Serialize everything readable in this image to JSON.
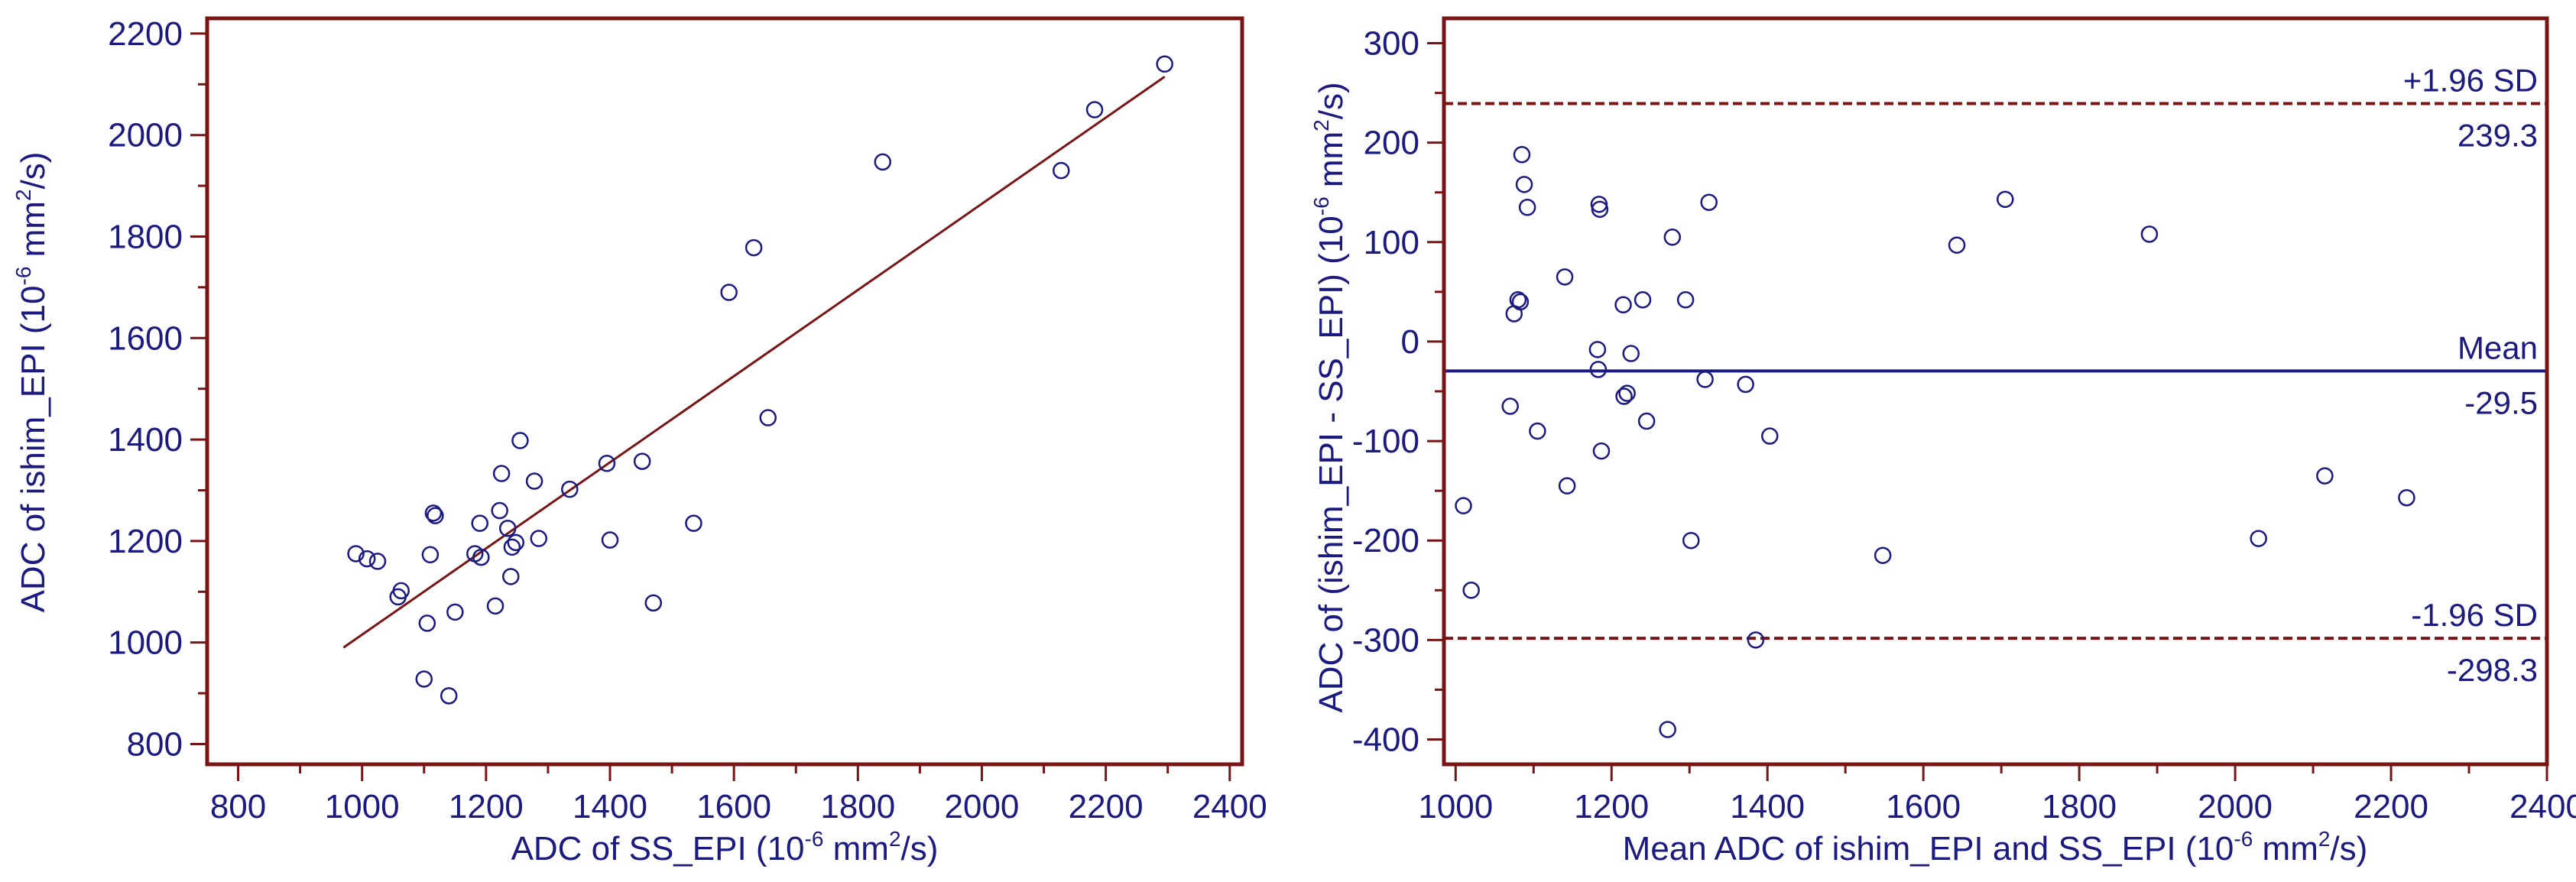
{
  "colors": {
    "frame": "#7a1414",
    "text": "#1a1a80",
    "points": "#1a1a80",
    "regression_line": "#7a1414",
    "mean_line": "#1a1a80",
    "limit_lines": "#7a1414"
  },
  "chart_data": [
    {
      "type": "scatter",
      "x_range": [
        750,
        2420
      ],
      "y_range": [
        760,
        2230
      ],
      "xlabel": {
        "pre": "ADC of SS_EPI (10",
        "sup": "-6",
        "mid": " mm",
        "sup2": "2",
        "post": "/s)"
      },
      "ylabel": {
        "pre": "ADC of ishim_EPI (10",
        "sup": "-6",
        "mid": " mm",
        "sup2": "2",
        "post": "/s)"
      },
      "x_ticks": [
        800,
        1000,
        1200,
        1400,
        1600,
        1800,
        2000,
        2200,
        2400
      ],
      "x_tick_labels": [
        "800",
        "1000",
        "1200",
        "1400",
        "1600",
        "1800",
        "2000",
        "2200",
        "2400"
      ],
      "x_minor_step": 100,
      "y_ticks": [
        800,
        1000,
        1200,
        1400,
        1600,
        1800,
        2000,
        2200
      ],
      "y_tick_labels": [
        "800",
        "1000",
        "1200",
        "1400",
        "1600",
        "1800",
        "2000",
        "2200"
      ],
      "y_minor_step": 100,
      "regression_line": {
        "x": [
          970,
          2295
        ],
        "y": [
          990,
          2115
        ]
      },
      "points": [
        [
          990,
          1175
        ],
        [
          1008,
          1165
        ],
        [
          1025,
          1160
        ],
        [
          1058,
          1090
        ],
        [
          1063,
          1102
        ],
        [
          1100,
          928
        ],
        [
          1105,
          1038
        ],
        [
          1110,
          1173
        ],
        [
          1115,
          1255
        ],
        [
          1118,
          1250
        ],
        [
          1140,
          895
        ],
        [
          1150,
          1060
        ],
        [
          1182,
          1175
        ],
        [
          1190,
          1235
        ],
        [
          1192,
          1168
        ],
        [
          1215,
          1072
        ],
        [
          1222,
          1260
        ],
        [
          1225,
          1333
        ],
        [
          1235,
          1225
        ],
        [
          1240,
          1130
        ],
        [
          1242,
          1188
        ],
        [
          1248,
          1197
        ],
        [
          1255,
          1398
        ],
        [
          1278,
          1318
        ],
        [
          1285,
          1205
        ],
        [
          1335,
          1302
        ],
        [
          1395,
          1353
        ],
        [
          1400,
          1202
        ],
        [
          1452,
          1357
        ],
        [
          1470,
          1078
        ],
        [
          1535,
          1235
        ],
        [
          1592,
          1690
        ],
        [
          1632,
          1778
        ],
        [
          1655,
          1443
        ],
        [
          1840,
          1947
        ],
        [
          2128,
          1930
        ],
        [
          2182,
          2050
        ],
        [
          2295,
          2140
        ]
      ]
    },
    {
      "type": "scatter",
      "x_range": [
        985,
        2400
      ],
      "y_range": [
        -425,
        325
      ],
      "xlabel": {
        "pre": "Mean ADC of ishim_EPI and SS_EPI (10",
        "sup": "-6",
        "mid": " mm",
        "sup2": "2",
        "post": "/s)"
      },
      "ylabel": {
        "pre": "ADC of (ishim_EPI - SS_EPI) (10",
        "sup": "-6",
        "mid": " mm",
        "sup2": "2",
        "post": "/s)"
      },
      "x_ticks": [
        1000,
        1200,
        1400,
        1600,
        1800,
        2000,
        2200,
        2400
      ],
      "x_tick_labels": [
        "1000",
        "1200",
        "1400",
        "1600",
        "1800",
        "2000",
        "2200",
        "2400"
      ],
      "x_minor_step": 100,
      "y_ticks": [
        -400,
        -300,
        -200,
        -100,
        0,
        100,
        200,
        300
      ],
      "y_tick_labels": [
        "-400",
        "-300",
        "-200",
        "-100",
        "0",
        "100",
        "200",
        "300"
      ],
      "y_minor_step": 50,
      "reference_lines": [
        {
          "value": 239.3,
          "style": "dashed",
          "label": "+1.96 SD",
          "value_label": "239.3"
        },
        {
          "value": -29.5,
          "style": "solid",
          "label": "Mean",
          "value_label": "-29.5"
        },
        {
          "value": -298.3,
          "style": "dashed",
          "label": "-1.96 SD",
          "value_label": "-298.3"
        }
      ],
      "points": [
        [
          1010,
          -165
        ],
        [
          1020,
          -250
        ],
        [
          1070,
          -65
        ],
        [
          1075,
          28
        ],
        [
          1080,
          42
        ],
        [
          1083,
          40
        ],
        [
          1085,
          188
        ],
        [
          1088,
          158
        ],
        [
          1092,
          135
        ],
        [
          1105,
          -90
        ],
        [
          1140,
          65
        ],
        [
          1143,
          -145
        ],
        [
          1182,
          -8
        ],
        [
          1183,
          -28
        ],
        [
          1184,
          138
        ],
        [
          1185,
          133
        ],
        [
          1187,
          -110
        ],
        [
          1215,
          37
        ],
        [
          1216,
          -55
        ],
        [
          1220,
          -52
        ],
        [
          1225,
          -12
        ],
        [
          1240,
          42
        ],
        [
          1245,
          -80
        ],
        [
          1278,
          105
        ],
        [
          1272,
          -390
        ],
        [
          1295,
          42
        ],
        [
          1302,
          -200
        ],
        [
          1320,
          -38
        ],
        [
          1325,
          140
        ],
        [
          1372,
          -43
        ],
        [
          1385,
          -300
        ],
        [
          1403,
          -95
        ],
        [
          1548,
          -215
        ],
        [
          1643,
          97
        ],
        [
          1705,
          143
        ],
        [
          1890,
          108
        ],
        [
          2030,
          -198
        ],
        [
          2115,
          -135
        ],
        [
          2220,
          -157
        ]
      ]
    }
  ]
}
